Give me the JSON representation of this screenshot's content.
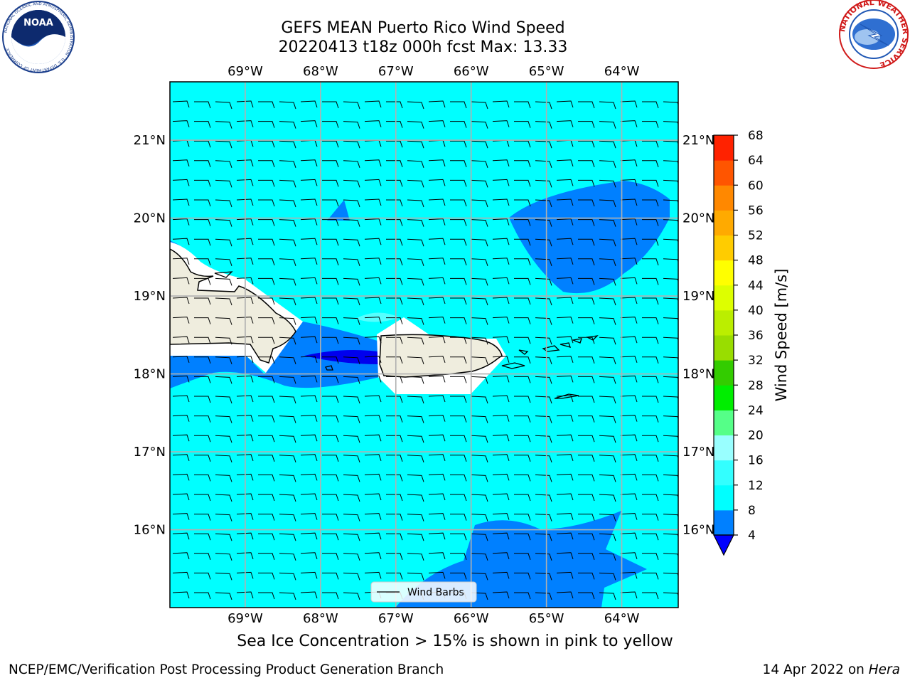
{
  "title": {
    "line1": "GEFS MEAN Puerto Rico Wind Speed",
    "line2": "20220413 t18z 000h fcst   Max: 13.33"
  },
  "logos": {
    "left": "noaa-logo",
    "right": "nws-logo",
    "noaa_text": "NOAA",
    "noaa_ring_text": "NATIONAL OCEANIC AND ATMOSPHERIC ADMINISTRATION · U.S. DEPARTMENT OF COMMERCE",
    "nws_ring_text": "NATIONAL WEATHER SERVICE"
  },
  "map": {
    "lon_labels": [
      "69°W",
      "68°W",
      "67°W",
      "66°W",
      "65°W",
      "64°W"
    ],
    "lat_labels": [
      "21°N",
      "20°N",
      "19°N",
      "18°N",
      "17°N",
      "16°N"
    ],
    "lon_range": [
      -70,
      -63.25
    ],
    "lat_range": [
      15,
      21.75
    ],
    "projection": "plate-carree",
    "grid": true,
    "background_color": "#00ffff",
    "land_color": "#efedde",
    "legend_label": "Wind Barbs"
  },
  "colorbar": {
    "label": "Wind Speed [m/s]",
    "ticks": [
      "4",
      "8",
      "12",
      "16",
      "20",
      "24",
      "28",
      "32",
      "36",
      "40",
      "44",
      "48",
      "52",
      "56",
      "60",
      "64",
      "68"
    ],
    "colors": [
      "#0080ff",
      "#00ffff",
      "#33ffff",
      "#99ffff",
      "#55ff88",
      "#00ee00",
      "#33cc00",
      "#99dd00",
      "#bbee00",
      "#ddff00",
      "#ffff00",
      "#ffcc00",
      "#ffaa00",
      "#ff8800",
      "#ff5500",
      "#ff2200"
    ],
    "under_color": "#0000ff"
  },
  "footnote": "Sea Ice Concentration > 15% is shown in pink to yellow",
  "footer": {
    "left": "NCEP/EMC/Verification Post Processing Product Generation Branch",
    "right_date": "14 Apr 2022 on",
    "right_host": "Hera"
  }
}
